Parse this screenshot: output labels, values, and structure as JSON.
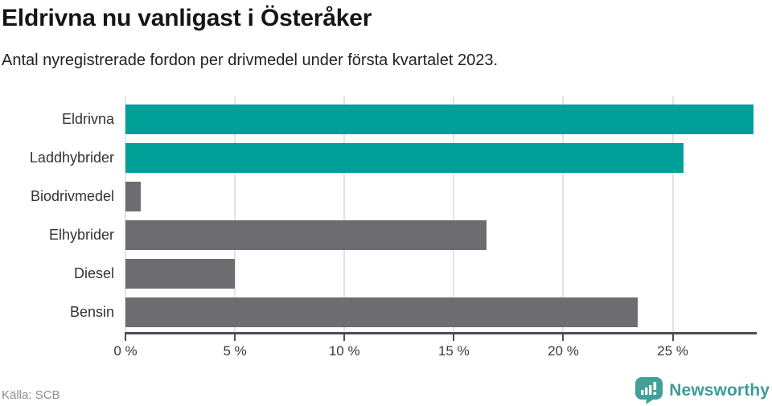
{
  "title": "Eldrivna nu vanligast i Österåker",
  "subtitle": "Antal nyregistrerade fordon per drivmedel under första kvartalet 2023.",
  "source": "Källa: SCB",
  "brand": {
    "name": "Newsworthy",
    "logo_icon": "bar-chart-speech-bubble-icon",
    "color": "#3f9c95"
  },
  "colors": {
    "highlight_teal": "#00a098",
    "default_gray": "#6c6c71",
    "gridline": "#e3e3e5",
    "axis": "#4d4d52"
  },
  "chart_data": {
    "type": "bar",
    "orientation": "horizontal",
    "title": "Eldrivna nu vanligast i Österåker",
    "subtitle": "Antal nyregistrerade fordon per drivmedel under första kvartalet 2023.",
    "categories": [
      "Eldrivna",
      "Laddhybrider",
      "Biodrivmedel",
      "Elhybrider",
      "Diesel",
      "Bensin"
    ],
    "values": [
      28.7,
      25.5,
      0.7,
      16.5,
      5.0,
      23.4
    ],
    "unit": "%",
    "xlabel": "",
    "ylabel": "",
    "xlim": [
      0,
      28.8
    ],
    "x_tick_values": [
      0,
      5,
      10,
      15,
      20,
      25
    ],
    "x_tick_labels": [
      "0 %",
      "5 %",
      "10 %",
      "15 %",
      "20 %",
      "25 %"
    ],
    "grid": true,
    "legend": false,
    "bar_colors": [
      "#00a098",
      "#00a098",
      "#6c6c71",
      "#6c6c71",
      "#6c6c71",
      "#6c6c71"
    ]
  }
}
